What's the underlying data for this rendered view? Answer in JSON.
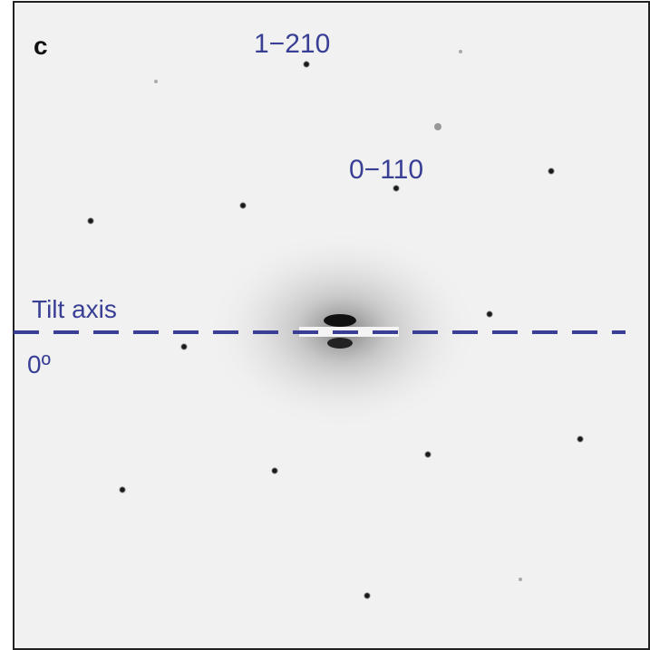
{
  "panel": {
    "label": "c"
  },
  "annotations": {
    "spot_a": "1−210",
    "spot_b": "0−110",
    "tilt_axis": "Tilt axis",
    "tilt_angle": "0º"
  }
}
